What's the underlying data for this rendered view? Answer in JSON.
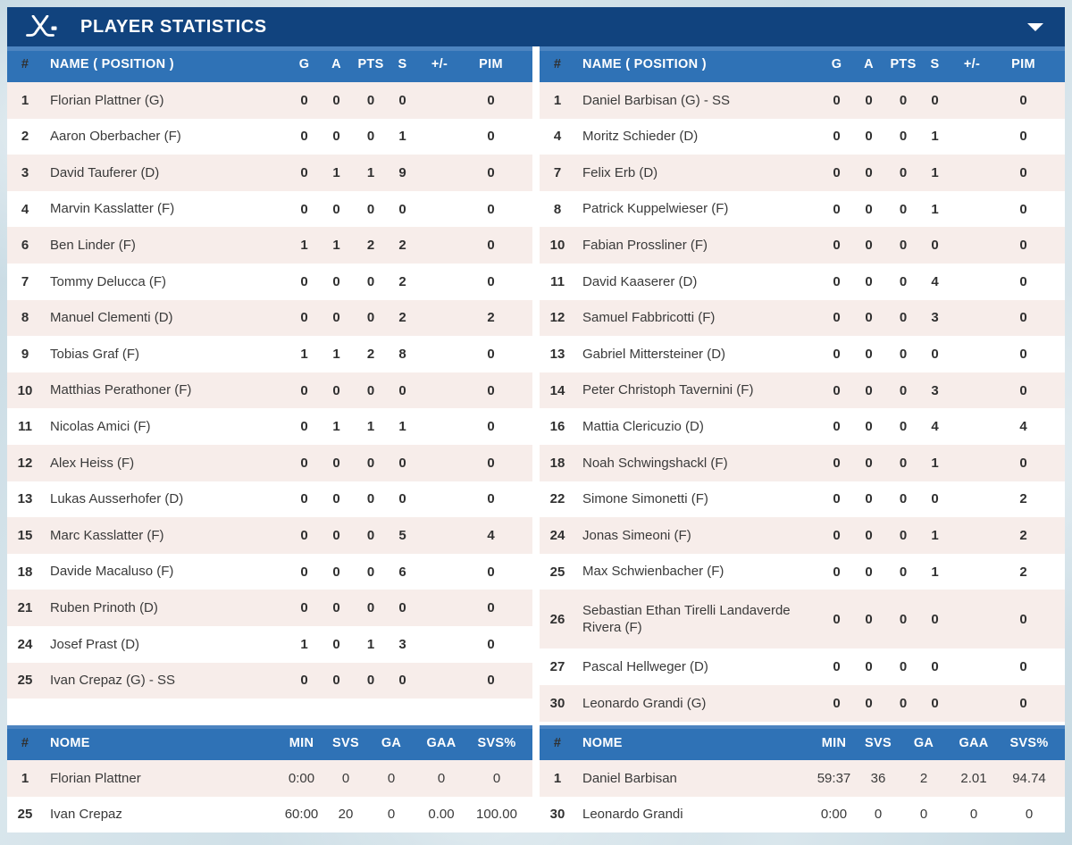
{
  "header": {
    "title": "PLAYER STATISTICS"
  },
  "skater_columns": [
    "#",
    "NAME ( POSITION )",
    "G",
    "A",
    "PTS",
    "S",
    "+/-",
    "PIM"
  ],
  "goalie_columns": [
    "#",
    "NOME",
    "MIN",
    "SVS",
    "GA",
    "GAA",
    "SVS%"
  ],
  "colors": {
    "title_bar": "#11437e",
    "table_header": "#2f72b6",
    "row_alt": "#f7edea",
    "row_base": "#ffffff"
  },
  "teams": [
    {
      "skaters": [
        {
          "num": "1",
          "name": "Florian Plattner (G)",
          "g": "0",
          "a": "0",
          "pts": "0",
          "s": "0",
          "pm": "",
          "pim": "0"
        },
        {
          "num": "2",
          "name": "Aaron Oberbacher (F)",
          "g": "0",
          "a": "0",
          "pts": "0",
          "s": "1",
          "pm": "",
          "pim": "0"
        },
        {
          "num": "3",
          "name": "David Tauferer (D)",
          "g": "0",
          "a": "1",
          "pts": "1",
          "s": "9",
          "pm": "",
          "pim": "0"
        },
        {
          "num": "4",
          "name": "Marvin Kasslatter (F)",
          "g": "0",
          "a": "0",
          "pts": "0",
          "s": "0",
          "pm": "",
          "pim": "0"
        },
        {
          "num": "6",
          "name": "Ben Linder (F)",
          "g": "1",
          "a": "1",
          "pts": "2",
          "s": "2",
          "pm": "",
          "pim": "0"
        },
        {
          "num": "7",
          "name": "Tommy Delucca (F)",
          "g": "0",
          "a": "0",
          "pts": "0",
          "s": "2",
          "pm": "",
          "pim": "0"
        },
        {
          "num": "8",
          "name": "Manuel Clementi (D)",
          "g": "0",
          "a": "0",
          "pts": "0",
          "s": "2",
          "pm": "",
          "pim": "2"
        },
        {
          "num": "9",
          "name": "Tobias Graf (F)",
          "g": "1",
          "a": "1",
          "pts": "2",
          "s": "8",
          "pm": "",
          "pim": "0"
        },
        {
          "num": "10",
          "name": "Matthias Perathoner (F)",
          "g": "0",
          "a": "0",
          "pts": "0",
          "s": "0",
          "pm": "",
          "pim": "0"
        },
        {
          "num": "11",
          "name": "Nicolas Amici (F)",
          "g": "0",
          "a": "1",
          "pts": "1",
          "s": "1",
          "pm": "",
          "pim": "0"
        },
        {
          "num": "12",
          "name": "Alex Heiss (F)",
          "g": "0",
          "a": "0",
          "pts": "0",
          "s": "0",
          "pm": "",
          "pim": "0"
        },
        {
          "num": "13",
          "name": "Lukas Ausserhofer (D)",
          "g": "0",
          "a": "0",
          "pts": "0",
          "s": "0",
          "pm": "",
          "pim": "0"
        },
        {
          "num": "15",
          "name": "Marc Kasslatter (F)",
          "g": "0",
          "a": "0",
          "pts": "0",
          "s": "5",
          "pm": "",
          "pim": "4"
        },
        {
          "num": "18",
          "name": "Davide Macaluso (F)",
          "g": "0",
          "a": "0",
          "pts": "0",
          "s": "6",
          "pm": "",
          "pim": "0"
        },
        {
          "num": "21",
          "name": "Ruben Prinoth (D)",
          "g": "0",
          "a": "0",
          "pts": "0",
          "s": "0",
          "pm": "",
          "pim": "0"
        },
        {
          "num": "24",
          "name": "Josef Prast (D)",
          "g": "1",
          "a": "0",
          "pts": "1",
          "s": "3",
          "pm": "",
          "pim": "0"
        },
        {
          "num": "25",
          "name": "Ivan Crepaz (G) - SS",
          "g": "0",
          "a": "0",
          "pts": "0",
          "s": "0",
          "pm": "",
          "pim": "0"
        }
      ],
      "goalies": [
        {
          "num": "1",
          "name": "Florian Plattner",
          "min": "0:00",
          "svs": "0",
          "ga": "0",
          "gaa": "0",
          "svs_pct": "0"
        },
        {
          "num": "25",
          "name": "Ivan Crepaz",
          "min": "60:00",
          "svs": "20",
          "ga": "0",
          "gaa": "0.00",
          "svs_pct": "100.00"
        }
      ]
    },
    {
      "skaters": [
        {
          "num": "1",
          "name": "Daniel Barbisan (G) - SS",
          "g": "0",
          "a": "0",
          "pts": "0",
          "s": "0",
          "pm": "",
          "pim": "0"
        },
        {
          "num": "4",
          "name": "Moritz Schieder (D)",
          "g": "0",
          "a": "0",
          "pts": "0",
          "s": "1",
          "pm": "",
          "pim": "0"
        },
        {
          "num": "7",
          "name": "Felix Erb (D)",
          "g": "0",
          "a": "0",
          "pts": "0",
          "s": "1",
          "pm": "",
          "pim": "0"
        },
        {
          "num": "8",
          "name": "Patrick Kuppelwieser (F)",
          "g": "0",
          "a": "0",
          "pts": "0",
          "s": "1",
          "pm": "",
          "pim": "0"
        },
        {
          "num": "10",
          "name": "Fabian Prossliner (F)",
          "g": "0",
          "a": "0",
          "pts": "0",
          "s": "0",
          "pm": "",
          "pim": "0"
        },
        {
          "num": "11",
          "name": "David Kaaserer (D)",
          "g": "0",
          "a": "0",
          "pts": "0",
          "s": "4",
          "pm": "",
          "pim": "0"
        },
        {
          "num": "12",
          "name": "Samuel Fabbricotti (F)",
          "g": "0",
          "a": "0",
          "pts": "0",
          "s": "3",
          "pm": "",
          "pim": "0"
        },
        {
          "num": "13",
          "name": "Gabriel Mittersteiner (D)",
          "g": "0",
          "a": "0",
          "pts": "0",
          "s": "0",
          "pm": "",
          "pim": "0"
        },
        {
          "num": "14",
          "name": "Peter Christoph Tavernini (F)",
          "g": "0",
          "a": "0",
          "pts": "0",
          "s": "3",
          "pm": "",
          "pim": "0"
        },
        {
          "num": "16",
          "name": "Mattia Clericuzio (D)",
          "g": "0",
          "a": "0",
          "pts": "0",
          "s": "4",
          "pm": "",
          "pim": "4"
        },
        {
          "num": "18",
          "name": "Noah Schwingshackl (F)",
          "g": "0",
          "a": "0",
          "pts": "0",
          "s": "1",
          "pm": "",
          "pim": "0"
        },
        {
          "num": "22",
          "name": "Simone Simonetti (F)",
          "g": "0",
          "a": "0",
          "pts": "0",
          "s": "0",
          "pm": "",
          "pim": "2"
        },
        {
          "num": "24",
          "name": "Jonas Simeoni (F)",
          "g": "0",
          "a": "0",
          "pts": "0",
          "s": "1",
          "pm": "",
          "pim": "2"
        },
        {
          "num": "25",
          "name": "Max Schwienbacher (F)",
          "g": "0",
          "a": "0",
          "pts": "0",
          "s": "1",
          "pm": "",
          "pim": "2"
        },
        {
          "num": "26",
          "name": "Sebastian Ethan Tirelli Landaverde Rivera (F)",
          "g": "0",
          "a": "0",
          "pts": "0",
          "s": "0",
          "pm": "",
          "pim": "0"
        },
        {
          "num": "27",
          "name": "Pascal Hellweger (D)",
          "g": "0",
          "a": "0",
          "pts": "0",
          "s": "0",
          "pm": "",
          "pim": "0"
        },
        {
          "num": "30",
          "name": "Leonardo Grandi (G)",
          "g": "0",
          "a": "0",
          "pts": "0",
          "s": "0",
          "pm": "",
          "pim": "0"
        }
      ],
      "goalies": [
        {
          "num": "1",
          "name": "Daniel Barbisan",
          "min": "59:37",
          "svs": "36",
          "ga": "2",
          "gaa": "2.01",
          "svs_pct": "94.74"
        },
        {
          "num": "30",
          "name": "Leonardo Grandi",
          "min": "0:00",
          "svs": "0",
          "ga": "0",
          "gaa": "0",
          "svs_pct": "0"
        }
      ]
    }
  ]
}
